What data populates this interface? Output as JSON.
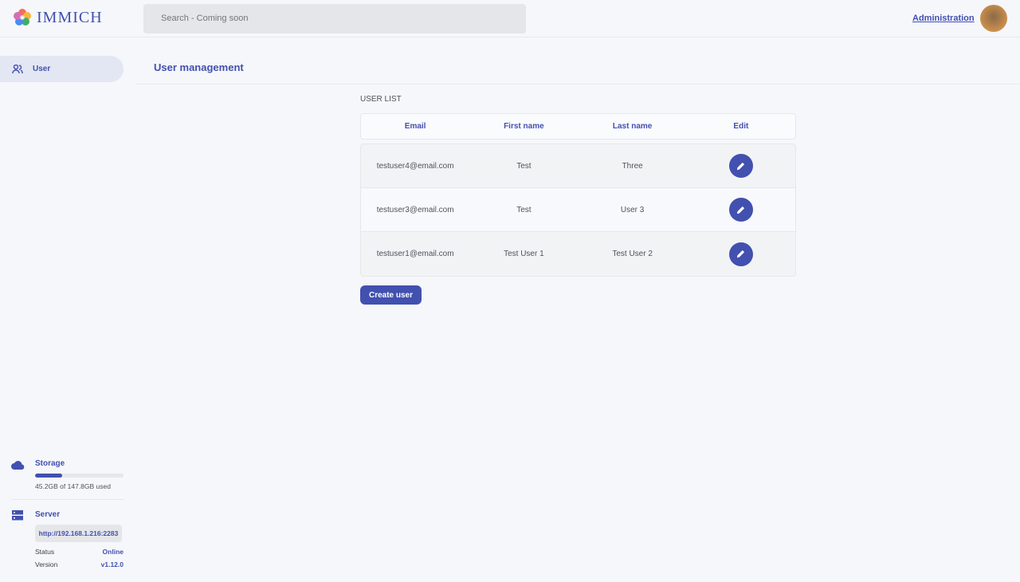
{
  "header": {
    "app_name": "IMMICH",
    "search_placeholder": "Search - Coming soon",
    "admin_link": "Administration"
  },
  "sidebar": {
    "items": [
      {
        "label": "User",
        "icon": "users-icon",
        "active": true
      }
    ],
    "storage": {
      "label": "Storage",
      "usage_text": "45.2GB of 147.8GB used",
      "used_fraction": 0.306
    },
    "server": {
      "label": "Server",
      "url": "http://192.168.1.216:2283",
      "status_label": "Status",
      "status_value": "Online",
      "version_label": "Version",
      "version_value": "v1.12.0"
    }
  },
  "main": {
    "title": "User management",
    "list_label": "USER LIST",
    "columns": [
      "Email",
      "First name",
      "Last name",
      "Edit"
    ],
    "rows": [
      {
        "email": "testuser4@email.com",
        "first": "Test",
        "last": "Three"
      },
      {
        "email": "testuser3@email.com",
        "first": "Test",
        "last": "User 3"
      },
      {
        "email": "testuser1@email.com",
        "first": "Test User 1",
        "last": "Test User 2"
      }
    ],
    "create_button": "Create user"
  },
  "colors": {
    "accent": "#4250af",
    "background": "#f6f7fb"
  }
}
